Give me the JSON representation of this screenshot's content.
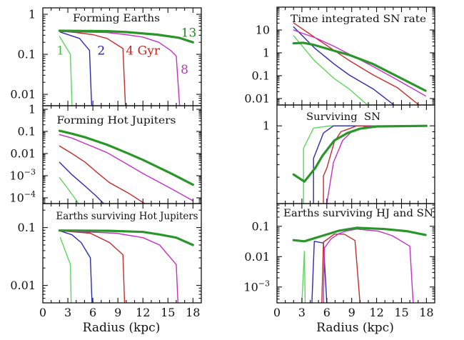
{
  "emphasized_series": "13 Gyr",
  "chart_data": [
    {
      "id": "forming-earths",
      "type": "line",
      "title": "Forming Earths",
      "xlabel": "",
      "ylabel": "",
      "xscale": "linear",
      "yscale": "log",
      "xlim": [
        0,
        19
      ],
      "ylim": [
        0.0052,
        1.45
      ],
      "grid": false,
      "yticks": [
        {
          "value": 1,
          "label": "1"
        },
        {
          "value": 0.1,
          "label": "0.1"
        },
        {
          "value": 0.01,
          "label": "0.01"
        }
      ],
      "xticks": [],
      "series": [
        {
          "name": "1 Gyr",
          "color": "#5cd65c",
          "x": [
            2.0,
            3.3,
            3.5
          ],
          "y": [
            0.28,
            0.1,
            0.0052
          ]
        },
        {
          "name": "2 Gyr",
          "color": "#2b2bb0",
          "x": [
            2.1,
            4.4,
            5.6,
            5.85
          ],
          "y": [
            0.36,
            0.25,
            0.125,
            0.0052
          ]
        },
        {
          "name": "4 Gyr",
          "color": "#c62a2a",
          "x": [
            2.0,
            4.0,
            6.0,
            7.7,
            9.6,
            9.9
          ],
          "y": [
            0.38,
            0.35,
            0.31,
            0.25,
            0.14,
            0.0052
          ]
        },
        {
          "name": "8 Gyr",
          "color": "#c62ec6",
          "x": [
            2.0,
            5.0,
            7.7,
            10.0,
            12.0,
            13.9,
            15.3,
            16.0,
            16.4
          ],
          "y": [
            0.37,
            0.36,
            0.35,
            0.31,
            0.27,
            0.2,
            0.126,
            0.091,
            0.0052
          ]
        },
        {
          "name": "13 Gyr",
          "color": "#2a962a",
          "x": [
            2.0,
            5.0,
            7.7,
            10.0,
            13.7,
            16.3,
            18.0
          ],
          "y": [
            0.39,
            0.385,
            0.38,
            0.36,
            0.31,
            0.26,
            0.2
          ]
        }
      ],
      "annotations": [
        {
          "text": "1",
          "color": "#3cbc3c",
          "x": 2.1,
          "y": 0.125
        },
        {
          "text": "2",
          "color": "#2424b0",
          "x": 7.0,
          "y": 0.125
        },
        {
          "text": "4 Gyr",
          "color": "#cc2222",
          "x": 12.0,
          "y": 0.125
        },
        {
          "text": "8",
          "color": "#c030c0",
          "x": 17.0,
          "y": 0.042
        },
        {
          "text": "13",
          "color": "#228b22",
          "x": 17.5,
          "y": 0.35
        }
      ]
    },
    {
      "id": "forming-hot-jupiters",
      "type": "line",
      "title": "Forming Hot Jupiters",
      "xlabel": "",
      "ylabel": "",
      "xscale": "linear",
      "yscale": "log",
      "xlim": [
        0,
        19
      ],
      "ylim": [
        5.5e-05,
        1.45
      ],
      "grid": false,
      "yticks": [
        {
          "value": 1,
          "label": "1"
        },
        {
          "value": 0.1,
          "label": "0.1"
        },
        {
          "value": 0.01,
          "label": "0.01"
        },
        {
          "value": 0.001,
          "label": "10",
          "exp": "−3"
        },
        {
          "value": 0.0001,
          "label": "10",
          "exp": "−4"
        }
      ],
      "xticks": [],
      "series": [
        {
          "name": "1 Gyr",
          "color": "#5cd65c",
          "x": [
            2.0,
            3.0,
            4.3
          ],
          "y": [
            0.00081,
            0.00026,
            5.5e-05
          ]
        },
        {
          "name": "2 Gyr",
          "color": "#2b2bb0",
          "x": [
            2.0,
            3.5,
            5.1,
            6.3,
            7.3
          ],
          "y": [
            0.004,
            0.0011,
            0.00033,
            0.00013,
            5.5e-05
          ]
        },
        {
          "name": "4 Gyr",
          "color": "#c62a2a",
          "x": [
            2.0,
            3.5,
            5.1,
            6.5,
            8.0,
            10.3,
            12.2
          ],
          "y": [
            0.022,
            0.01,
            0.004,
            0.0014,
            0.00048,
            0.00016,
            5.5e-05
          ]
        },
        {
          "name": "8 Gyr",
          "color": "#c62ec6",
          "x": [
            2.0,
            3.5,
            5.1,
            7.7,
            10.0,
            12.0,
            15.4,
            18.0
          ],
          "y": [
            0.072,
            0.05,
            0.028,
            0.011,
            0.0035,
            0.00126,
            0.00026,
            7.4e-05
          ]
        },
        {
          "name": "13 Gyr",
          "color": "#2a962a",
          "x": [
            2.0,
            3.5,
            5.1,
            7.7,
            10.0,
            12.0,
            15.4,
            18.0
          ],
          "y": [
            0.107,
            0.079,
            0.054,
            0.025,
            0.011,
            0.0052,
            0.00126,
            0.00039
          ]
        }
      ],
      "annotations": []
    },
    {
      "id": "earths-surviving-hot-jupiters",
      "type": "line",
      "title": "Earths surviving Hot Jupiters",
      "xlabel": "Radius (kpc)",
      "ylabel": "",
      "xscale": "linear",
      "yscale": "log",
      "xlim": [
        0,
        19
      ],
      "ylim": [
        0.005,
        0.26
      ],
      "grid": false,
      "yticks": [
        {
          "value": 0.1,
          "label": "0.1"
        },
        {
          "value": 0.01,
          "label": "0.01"
        }
      ],
      "xticks": [
        {
          "value": 0,
          "label": "0"
        },
        {
          "value": 3,
          "label": "3"
        },
        {
          "value": 6,
          "label": "6"
        },
        {
          "value": 9,
          "label": "9"
        },
        {
          "value": 12,
          "label": "12"
        },
        {
          "value": 15,
          "label": "15"
        },
        {
          "value": 18,
          "label": "18"
        }
      ],
      "series": [
        {
          "name": "1 Gyr",
          "color": "#5cd65c",
          "x": [
            2.1,
            3.3,
            3.4
          ],
          "y": [
            0.067,
            0.023,
            0.005
          ]
        },
        {
          "name": "2 Gyr",
          "color": "#2b2bb0",
          "x": [
            2.0,
            3.5,
            4.6,
            5.7,
            5.9
          ],
          "y": [
            0.088,
            0.075,
            0.055,
            0.03,
            0.005
          ]
        },
        {
          "name": "4 Gyr",
          "color": "#c62a2a",
          "x": [
            2.0,
            5.7,
            8.0,
            9.6,
            9.8
          ],
          "y": [
            0.088,
            0.08,
            0.055,
            0.034,
            0.005
          ]
        },
        {
          "name": "8 Gyr",
          "color": "#c62ec6",
          "x": [
            2.0,
            8.8,
            12.0,
            14.0,
            16.0,
            16.2
          ],
          "y": [
            0.088,
            0.08,
            0.067,
            0.05,
            0.023,
            0.005
          ]
        },
        {
          "name": "13 Gyr",
          "color": "#2a962a",
          "x": [
            2.0,
            8.0,
            12.0,
            14.0,
            16.0,
            18.0
          ],
          "y": [
            0.089,
            0.088,
            0.084,
            0.076,
            0.067,
            0.05
          ]
        }
      ],
      "annotations": []
    },
    {
      "id": "time-integrated-sn-rate",
      "type": "line",
      "title": "Time integrated SN rate",
      "xlabel": "",
      "ylabel": "",
      "xscale": "linear",
      "yscale": "log",
      "xlim": [
        0,
        19
      ],
      "ylim": [
        0.0052,
        100
      ],
      "grid": false,
      "yticks": [
        {
          "value": 10,
          "label": "10"
        },
        {
          "value": 1,
          "label": "1"
        },
        {
          "value": 0.1,
          "label": "0.1"
        },
        {
          "value": 0.01,
          "label": "0.01"
        }
      ],
      "xticks": [],
      "series": [
        {
          "name": "1 Gyr",
          "color": "#5cd65c",
          "x": [
            2.0,
            4.5,
            6.9,
            8.7,
            10.9
          ],
          "y": [
            5.6,
            0.46,
            0.074,
            0.026,
            0.0052
          ]
        },
        {
          "name": "2 Gyr",
          "color": "#2b2bb0",
          "x": [
            2.0,
            4.5,
            6.9,
            8.7,
            11.6,
            14.1
          ],
          "y": [
            13.5,
            1.66,
            0.32,
            0.107,
            0.026,
            0.0052
          ]
        },
        {
          "name": "4 Gyr",
          "color": "#c62a2a",
          "x": [
            2.0,
            4.5,
            6.9,
            8.7,
            11.6,
            14.5,
            17.1
          ],
          "y": [
            20.4,
            4.9,
            1.26,
            0.46,
            0.107,
            0.03,
            0.0052
          ]
        },
        {
          "name": "8 Gyr",
          "color": "#c62ec6",
          "x": [
            2.0,
            3.2,
            4.6,
            6.9,
            8.7,
            11.6,
            14.5,
            17.9
          ],
          "y": [
            10.0,
            6.9,
            4.6,
            1.9,
            0.87,
            0.25,
            0.065,
            0.013
          ]
        },
        {
          "name": "13 Gyr",
          "color": "#2a962a",
          "x": [
            2.0,
            3.2,
            4.5,
            6.9,
            8.7,
            11.6,
            14.5,
            17.9
          ],
          "y": [
            2.6,
            2.75,
            2.2,
            1.23,
            0.81,
            0.32,
            0.093,
            0.022
          ]
        }
      ],
      "annotations": []
    },
    {
      "id": "surviving-sn",
      "type": "line",
      "title": "Surviving  SN",
      "xlabel": "",
      "ylabel": "",
      "xscale": "linear",
      "yscale": "log",
      "xlim": [
        0,
        19
      ],
      "ylim": [
        0.25,
        1.45
      ],
      "grid": false,
      "yticks": [
        {
          "value": 1,
          "label": "1"
        }
      ],
      "xticks": [],
      "series": [
        {
          "name": "1 Gyr",
          "color": "#5cd65c",
          "x": [
            3.2,
            3.2,
            4.4,
            6.3,
            18.0
          ],
          "y": [
            0.25,
            0.67,
            0.96,
            1.0,
            1.0
          ]
        },
        {
          "name": "2 Gyr",
          "color": "#2b2bb0",
          "x": [
            4.4,
            4.4,
            5.6,
            6.8,
            18.0
          ],
          "y": [
            0.25,
            0.56,
            0.88,
            1.0,
            1.0
          ]
        },
        {
          "name": "4 Gyr",
          "color": "#c62a2a",
          "x": [
            5.6,
            5.6,
            6.0,
            6.9,
            7.7,
            8.7,
            9.6,
            18.0
          ],
          "y": [
            0.25,
            0.41,
            0.47,
            0.75,
            0.9,
            0.95,
            1.0,
            1.0
          ]
        },
        {
          "name": "8 Gyr",
          "color": "#c62ec6",
          "x": [
            6.0,
            6.8,
            7.9,
            9.0,
            10.5,
            11.5,
            18.0
          ],
          "y": [
            0.25,
            0.52,
            0.77,
            0.9,
            0.98,
            1.0,
            1.0
          ]
        },
        {
          "name": "13 Gyr",
          "color": "#2a962a",
          "x": [
            2.0,
            3.3,
            4.6,
            5.5,
            6.9,
            8.5,
            10.0,
            12.0,
            18.0
          ],
          "y": [
            0.42,
            0.37,
            0.47,
            0.59,
            0.77,
            0.88,
            0.95,
            0.99,
            1.0
          ]
        }
      ],
      "annotations": []
    },
    {
      "id": "earths-surviving-hj-and-sn",
      "type": "line",
      "title": "Earths surviving HJ and SN",
      "xlabel": "Radius (kpc)",
      "ylabel": "",
      "xscale": "linear",
      "yscale": "log",
      "xlim": [
        0,
        19
      ],
      "ylim": [
        0.0003,
        0.56
      ],
      "grid": false,
      "yticks": [
        {
          "value": 0.1,
          "label": "0.1"
        },
        {
          "value": 0.01,
          "label": "0.01"
        },
        {
          "value": 0.001,
          "label": "10",
          "exp": "−3"
        }
      ],
      "xticks": [
        {
          "value": 0,
          "label": "0"
        },
        {
          "value": 3,
          "label": "3"
        },
        {
          "value": 6,
          "label": "6"
        },
        {
          "value": 9,
          "label": "9"
        },
        {
          "value": 12,
          "label": "12"
        },
        {
          "value": 15,
          "label": "15"
        },
        {
          "value": 18,
          "label": "18"
        }
      ],
      "series": [
        {
          "name": "1 Gyr",
          "color": "#5cd65c",
          "x": [
            3.0,
            3.3,
            3.4
          ],
          "y": [
            0.0003,
            0.015,
            0.0003
          ]
        },
        {
          "name": "2 Gyr",
          "color": "#2b2bb0",
          "x": [
            4.2,
            4.5,
            5.6,
            6.0
          ],
          "y": [
            0.0003,
            0.032,
            0.028,
            0.0003
          ]
        },
        {
          "name": "4 Gyr",
          "color": "#c62a2a",
          "x": [
            5.4,
            5.6,
            6.9,
            8.1,
            9.4,
            10.0
          ],
          "y": [
            0.0003,
            0.03,
            0.055,
            0.055,
            0.034,
            0.0003
          ]
        },
        {
          "name": "8 Gyr",
          "color": "#c62ec6",
          "x": [
            5.6,
            5.7,
            6.5,
            7.5,
            8.3,
            9.6,
            12.2,
            13.9,
            16.0,
            16.4
          ],
          "y": [
            0.0003,
            0.019,
            0.038,
            0.058,
            0.069,
            0.081,
            0.069,
            0.049,
            0.022,
            0.0003
          ]
        },
        {
          "name": "13 Gyr",
          "color": "#2a962a",
          "x": [
            2.0,
            3.3,
            5.5,
            7.5,
            9.6,
            13.0,
            15.6,
            17.9
          ],
          "y": [
            0.035,
            0.032,
            0.049,
            0.072,
            0.089,
            0.081,
            0.069,
            0.052
          ]
        }
      ],
      "annotations": []
    }
  ]
}
